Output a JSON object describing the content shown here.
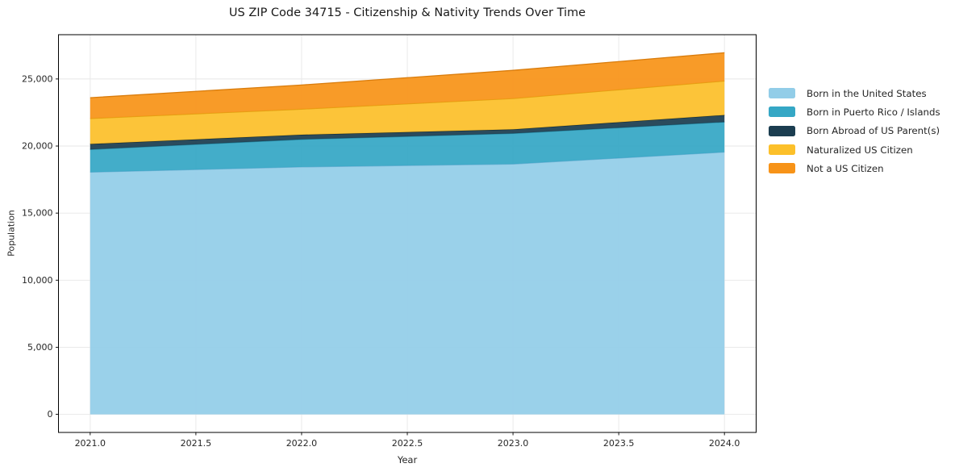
{
  "chart_data": {
    "type": "area",
    "stacked": true,
    "title": "US ZIP Code 34715 - Citizenship & Nativity Trends Over Time",
    "xlabel": "Year",
    "ylabel": "Population",
    "x": [
      2021,
      2022,
      2023,
      2024
    ],
    "series": [
      {
        "name": "Born in the United States",
        "color": "#92cde8",
        "edge_color": "#6fb2d4",
        "values": [
          18050,
          18440,
          18660,
          19550
        ]
      },
      {
        "name": "Born in Puerto Rico / Islands",
        "color": "#35a7c5",
        "edge_color": "#27869f",
        "values": [
          1700,
          2060,
          2280,
          2240
        ]
      },
      {
        "name": "Born Abroad of US Parent(s)",
        "color": "#1b3d50",
        "edge_color": "#102a38",
        "values": [
          400,
          340,
          300,
          520
        ]
      },
      {
        "name": "Naturalized US Citizen",
        "color": "#fcc02a",
        "edge_color": "#dfa413",
        "values": [
          1900,
          1910,
          2300,
          2540
        ]
      },
      {
        "name": "Not a US Citizen",
        "color": "#f79318",
        "edge_color": "#d97c0c",
        "values": [
          1550,
          1800,
          2100,
          2100
        ]
      }
    ],
    "stack_totals": [
      23600,
      24550,
      25640,
      26950
    ],
    "x_ticks": {
      "values": [
        2021.0,
        2021.5,
        2022.0,
        2022.5,
        2023.0,
        2023.5,
        2024.0
      ],
      "labels": [
        "2021.0",
        "2021.5",
        "2022.0",
        "2022.5",
        "2023.0",
        "2023.5",
        "2024.0"
      ]
    },
    "y_ticks": {
      "values": [
        0,
        5000,
        10000,
        15000,
        20000,
        25000
      ],
      "labels": [
        "0",
        "5,000",
        "10,000",
        "15,000",
        "20,000",
        "25,000"
      ]
    },
    "xlim": [
      2020.85,
      2024.15
    ],
    "ylim": [
      -1350,
      28300
    ],
    "grid": true,
    "legend_position": "right-outside",
    "style": {
      "background": "#ffffff",
      "grid_color": "#e7e7e7",
      "spine_color": "#000000",
      "text_color": "#262626",
      "fill_opacity": 0.93
    }
  }
}
